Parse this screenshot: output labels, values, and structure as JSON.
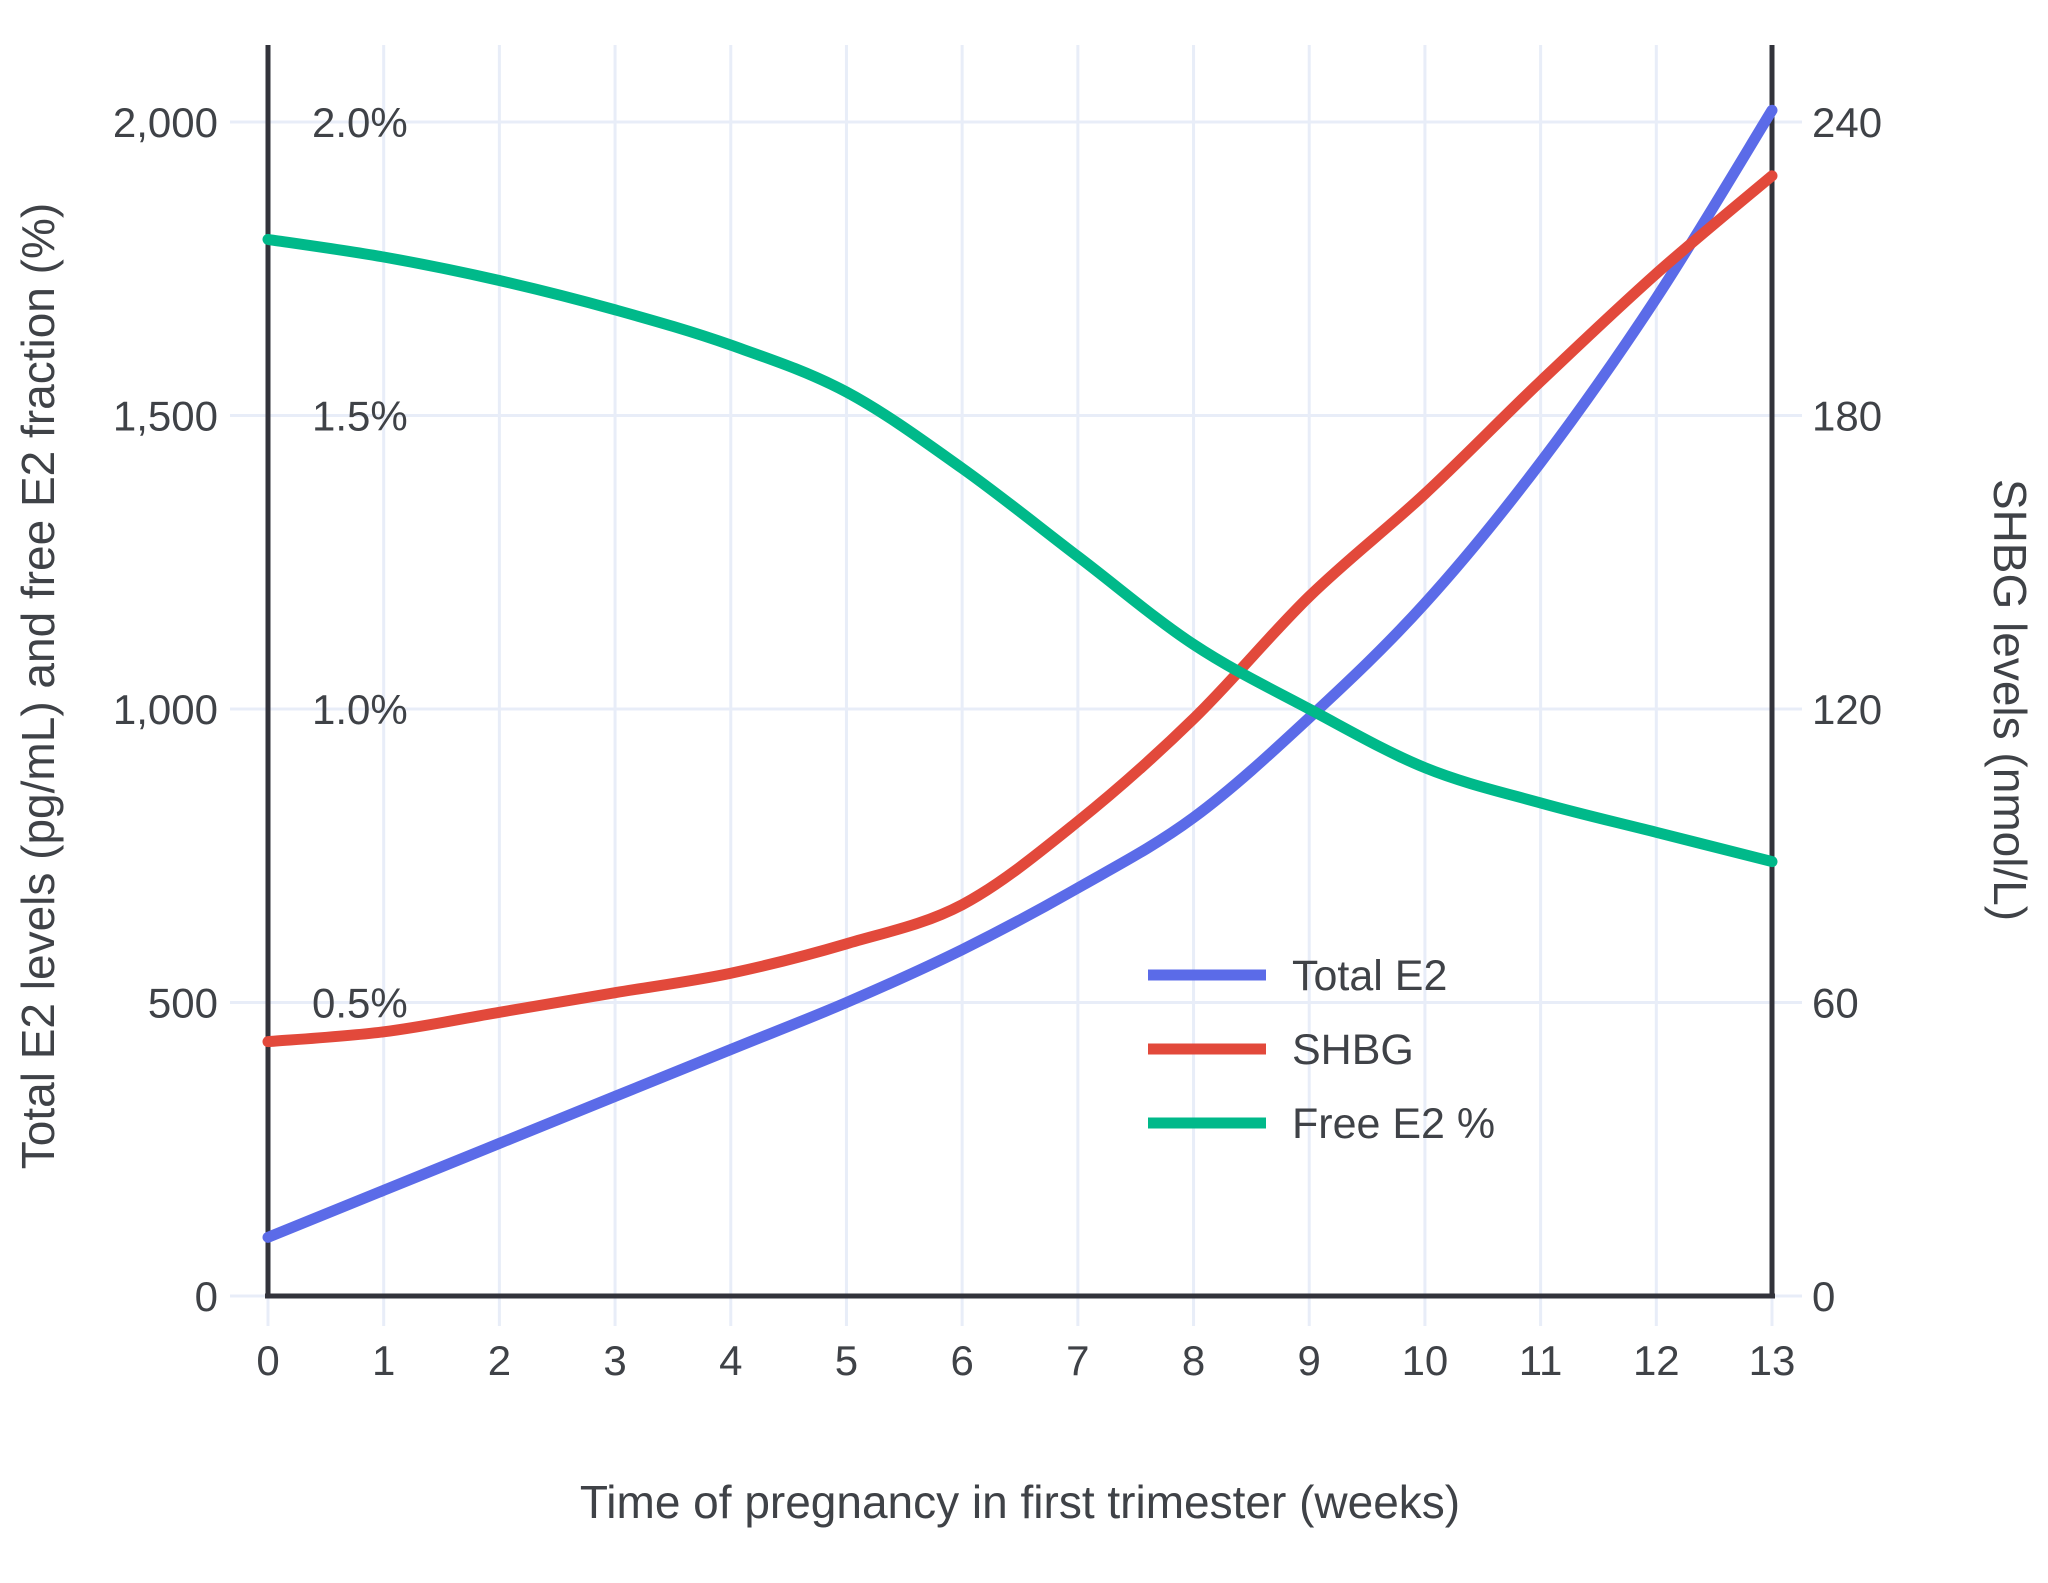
{
  "chart_data": {
    "type": "line",
    "title": "",
    "xlabel": "Time of pregnancy in first trimester (weeks)",
    "ylabel_left": "Total E2 levels (pg/mL) and free E2 fraction (%)",
    "ylabel_right": "SHBG levels (nmol/L)",
    "x": [
      0,
      1,
      2,
      3,
      4,
      5,
      6,
      7,
      8,
      9,
      10,
      11,
      12,
      13
    ],
    "x_tick_labels": [
      "0",
      "1",
      "2",
      "3",
      "4",
      "5",
      "6",
      "7",
      "8",
      "9",
      "10",
      "11",
      "12",
      "13"
    ],
    "left_axis": {
      "ticks": [
        {
          "value": 0,
          "label": "0"
        },
        {
          "value": 500,
          "label": "500"
        },
        {
          "value": 1000,
          "label": "1,000"
        },
        {
          "value": 1500,
          "label": "1,500"
        },
        {
          "value": 2000,
          "label": "2,000"
        }
      ],
      "inner_percent_labels": [
        {
          "value": 500,
          "label": "0.5%"
        },
        {
          "value": 1000,
          "label": "1.0%"
        },
        {
          "value": 1500,
          "label": "1.5%"
        },
        {
          "value": 2000,
          "label": "2.0%"
        }
      ],
      "range": [
        0,
        2130
      ]
    },
    "right_axis": {
      "ticks": [
        {
          "value": 0,
          "label": "0"
        },
        {
          "value": 60,
          "label": "60"
        },
        {
          "value": 120,
          "label": "120"
        },
        {
          "value": 180,
          "label": "180"
        },
        {
          "value": 240,
          "label": "240"
        }
      ],
      "range": [
        0,
        256
      ]
    },
    "grid": true,
    "series": [
      {
        "name": "Total E2",
        "axis": "left",
        "unit": "pg/mL",
        "color": "#5b6be8",
        "values": [
          100,
          180,
          260,
          340,
          420,
          500,
          590,
          695,
          815,
          985,
          1180,
          1420,
          1700,
          2020
        ]
      },
      {
        "name": "SHBG",
        "axis": "right",
        "unit": "nmol/L",
        "color": "#e2493b",
        "values": [
          52,
          54,
          58,
          62,
          66,
          72,
          80,
          97,
          118,
          143,
          164,
          187,
          209,
          229
        ]
      },
      {
        "name": "Free E2 %",
        "axis": "percent",
        "unit": "%",
        "color": "#00b98a",
        "values": [
          1.8,
          1.77,
          1.73,
          1.68,
          1.62,
          1.54,
          1.41,
          1.26,
          1.11,
          1.0,
          0.9,
          0.84,
          0.79,
          0.74
        ]
      }
    ],
    "legend": {
      "position": "inside-right",
      "entries": [
        "Total E2",
        "SHBG",
        "Free E2 %"
      ]
    },
    "colors": {
      "grid": "#e8edf8",
      "axis_line": "#32333b",
      "text": "#3f4247",
      "background": "#ffffff"
    }
  }
}
